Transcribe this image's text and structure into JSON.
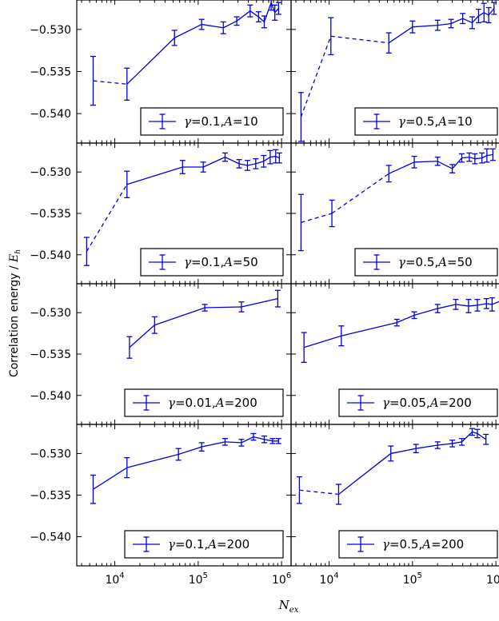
{
  "figure": {
    "ylabel_text": "Correlation energy / ",
    "ylabel_unit": "E",
    "ylabel_sub": "h",
    "xlabel_main": "N",
    "xlabel_sub": "ex",
    "x_tick_base": "10",
    "x_tick_exps": [
      "4",
      "5",
      "6"
    ],
    "y_tick_labels": [
      "−0.530",
      "−0.535",
      "−0.540"
    ],
    "line_color": "#0000dd"
  },
  "chart_data": [
    {
      "type": "line",
      "legend": "γ=0.1, A=10",
      "legend_gamma": "γ",
      "legend_param": "=0.1,",
      "legend_a": "A",
      "legend_aval": "=10",
      "x": [
        5500,
        14000,
        52000,
        110000,
        200000,
        290000,
        420000,
        530000,
        620000,
        750000,
        830000,
        920000
      ],
      "y": [
        -0.5361,
        -0.5365,
        -0.531,
        -0.5294,
        -0.5298,
        -0.529,
        -0.5278,
        -0.5285,
        -0.5291,
        -0.5268,
        -0.528,
        -0.5275
      ],
      "err": [
        0.0029,
        0.0019,
        0.0009,
        0.0006,
        0.0007,
        0.0005,
        0.0007,
        0.0006,
        0.0007,
        0.0009,
        0.0009,
        0.0007
      ],
      "dashed_segments": [
        0
      ],
      "xlim": [
        3500,
        1300000
      ],
      "ylim": [
        -0.5435,
        -0.5265
      ]
    },
    {
      "type": "line",
      "legend": "γ=0.5, A=10",
      "legend_gamma": "γ",
      "legend_param": "=0.5,",
      "legend_a": "A",
      "legend_aval": "=10",
      "x": [
        4600,
        10500,
        52000,
        100000,
        200000,
        290000,
        400000,
        520000,
        620000,
        720000,
        820000,
        950000
      ],
      "y": [
        -0.5404,
        -0.5308,
        -0.5316,
        -0.5297,
        -0.5295,
        -0.5293,
        -0.5287,
        -0.5292,
        -0.5284,
        -0.528,
        -0.5283,
        -0.5275
      ],
      "err": [
        0.0029,
        0.0022,
        0.0012,
        0.0007,
        0.0006,
        0.0005,
        0.0006,
        0.0007,
        0.0008,
        0.0011,
        0.0009,
        0.0007
      ],
      "dashed_segments": [
        0,
        1
      ],
      "xlim": [
        3500,
        1300000
      ],
      "ylim": [
        -0.5435,
        -0.5265
      ]
    },
    {
      "type": "line",
      "legend": "γ=0.1, A=50",
      "legend_gamma": "γ",
      "legend_param": "=0.1,",
      "legend_a": "A",
      "legend_aval": "=50",
      "x": [
        4600,
        14000,
        65000,
        115000,
        210000,
        310000,
        390000,
        490000,
        610000,
        730000,
        850000,
        940000
      ],
      "y": [
        -0.5396,
        -0.5315,
        -0.5294,
        -0.5294,
        -0.5282,
        -0.529,
        -0.5292,
        -0.529,
        -0.5287,
        -0.5282,
        -0.5281,
        -0.5283
      ],
      "err": [
        0.0017,
        0.0016,
        0.0008,
        0.0006,
        0.0005,
        0.0005,
        0.0006,
        0.0006,
        0.0007,
        0.0008,
        0.0008,
        0.0006
      ],
      "dashed_segments": [
        0
      ],
      "xlim": [
        3500,
        1300000
      ],
      "ylim": [
        -0.5435,
        -0.5265
      ]
    },
    {
      "type": "line",
      "legend": "γ=0.5, A=50",
      "legend_gamma": "γ",
      "legend_param": "=0.5,",
      "legend_a": "A",
      "legend_aval": "=50",
      "x": [
        4600,
        10800,
        52000,
        105000,
        200000,
        300000,
        390000,
        480000,
        560000,
        680000,
        780000,
        920000
      ],
      "y": [
        -0.5361,
        -0.535,
        -0.5302,
        -0.5288,
        -0.5287,
        -0.5296,
        -0.5283,
        -0.5282,
        -0.5284,
        -0.5283,
        -0.528,
        -0.5279
      ],
      "err": [
        0.0034,
        0.0016,
        0.001,
        0.0007,
        0.0005,
        0.0005,
        0.0005,
        0.0005,
        0.0006,
        0.0006,
        0.0008,
        0.0007
      ],
      "dashed_segments": [
        0,
        1
      ],
      "xlim": [
        3500,
        1300000
      ],
      "ylim": [
        -0.5435,
        -0.5265
      ]
    },
    {
      "type": "line",
      "legend": "γ=0.01, A=200",
      "legend_gamma": "γ",
      "legend_param": "=0.01,",
      "legend_a": "A",
      "legend_aval": "=200",
      "x": [
        15000,
        30000,
        120000,
        330000,
        900000
      ],
      "y": [
        -0.5342,
        -0.5315,
        -0.5294,
        -0.5293,
        -0.5283
      ],
      "err": [
        0.0013,
        0.001,
        0.0004,
        0.0006,
        0.001
      ],
      "dashed_segments": [],
      "xlim": [
        3500,
        1300000
      ],
      "ylim": [
        -0.5435,
        -0.5265
      ]
    },
    {
      "type": "line",
      "legend": "γ=0.05, A=200",
      "legend_gamma": "γ",
      "legend_param": "=0.05,",
      "legend_a": "A",
      "legend_aval": "=200",
      "x": [
        5000,
        14000,
        65000,
        105000,
        200000,
        330000,
        470000,
        600000,
        770000,
        900000,
        1200000
      ],
      "y": [
        -0.5342,
        -0.5328,
        -0.5312,
        -0.5303,
        -0.5295,
        -0.529,
        -0.5292,
        -0.5291,
        -0.5289,
        -0.529,
        -0.5285
      ],
      "err": [
        0.0018,
        0.0012,
        0.0004,
        0.0004,
        0.0005,
        0.0006,
        0.0008,
        0.0007,
        0.0006,
        0.0008,
        0.0006
      ],
      "dashed_segments": [],
      "xlim": [
        3500,
        1300000
      ],
      "ylim": [
        -0.5435,
        -0.5265
      ]
    },
    {
      "type": "line",
      "legend": "γ=0.1, A=200",
      "legend_gamma": "γ",
      "legend_param": "=0.1,",
      "legend_a": "A",
      "legend_aval": "=200",
      "x": [
        5500,
        14000,
        58000,
        110000,
        210000,
        330000,
        460000,
        620000,
        780000,
        920000
      ],
      "y": [
        -0.5343,
        -0.5317,
        -0.5301,
        -0.5292,
        -0.5286,
        -0.5287,
        -0.528,
        -0.5283,
        -0.5285,
        -0.5285
      ],
      "err": [
        0.0017,
        0.0012,
        0.0007,
        0.0005,
        0.0004,
        0.0004,
        0.0004,
        0.0004,
        0.0003,
        0.0003
      ],
      "dashed_segments": [],
      "xlim": [
        3500,
        1300000
      ],
      "ylim": [
        -0.5435,
        -0.5265
      ]
    },
    {
      "type": "line",
      "legend": "γ=0.5, A=200",
      "legend_gamma": "γ",
      "legend_param": "=0.5,",
      "legend_a": "A",
      "legend_aval": "=200",
      "x": [
        4400,
        13000,
        55000,
        110000,
        200000,
        300000,
        390000,
        520000,
        600000,
        760000
      ],
      "y": [
        -0.5344,
        -0.5349,
        -0.53,
        -0.5294,
        -0.529,
        -0.5288,
        -0.5286,
        -0.5274,
        -0.5276,
        -0.5283
      ],
      "err": [
        0.0016,
        0.0012,
        0.0009,
        0.0005,
        0.0004,
        0.0004,
        0.0004,
        0.0004,
        0.0005,
        0.0006
      ],
      "dashed_segments": [
        0
      ],
      "xlim": [
        3500,
        1300000
      ],
      "ylim": [
        -0.5435,
        -0.5265
      ]
    }
  ]
}
